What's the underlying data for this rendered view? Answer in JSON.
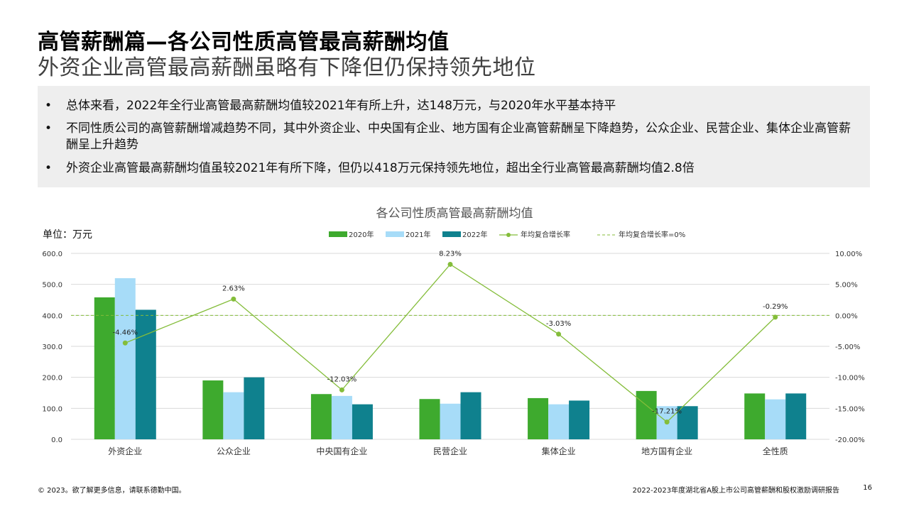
{
  "header": {
    "title": "高管薪酬篇—各公司性质高管最高薪酬均值",
    "subtitle": "外资企业高管最高薪酬虽略有下降但仍保持领先地位"
  },
  "summary": {
    "bullets": [
      "总体来看，2022年全行业高管最高薪酬均值较2021年有所上升，达148万元，与2020年水平基本持平",
      "不同性质公司的高管薪酬增减趋势不同，其中外资企业、中央国有企业、地方国有企业高管薪酬呈下降趋势，公众企业、民营企业、集体企业高管薪酬呈上升趋势",
      "外资企业高管最高薪酬均值虽较2021年有所下降，但仍以418万元保持领先地位，超出全行业高管最高薪酬均值2.8倍"
    ],
    "bullet_symbol": "•"
  },
  "chart_data": {
    "type": "bar",
    "title": "各公司性质高管最高薪酬均值",
    "unit_label": "单位：万元",
    "categories": [
      "外资企业",
      "公众企业",
      "中央国有企业",
      "民营企业",
      "集体企业",
      "地方国有企业",
      "全性质"
    ],
    "series": [
      {
        "name": "2020年",
        "type": "bar",
        "color": "#3eaa2e",
        "values": [
          458,
          190,
          146,
          130,
          133,
          156,
          148
        ]
      },
      {
        "name": "2021年",
        "type": "bar",
        "color": "#a7dcf8",
        "values": [
          520,
          152,
          140,
          115,
          113,
          107,
          129
        ]
      },
      {
        "name": "2022年",
        "type": "bar",
        "color": "#0f818e",
        "values": [
          418,
          200,
          113,
          152,
          125,
          107,
          148
        ]
      },
      {
        "name": "年均复合增长率",
        "type": "line",
        "axis": "right",
        "color": "#84bd3a",
        "values": [
          -4.46,
          2.63,
          -12.03,
          8.23,
          -3.03,
          -17.21,
          -0.29
        ],
        "labels": [
          "-4.46%",
          "2.63%",
          "-12.03%",
          "8.23%",
          "-3.03%",
          "-17.21%",
          "-0.29%"
        ]
      },
      {
        "name": "年均复合增长率=0%",
        "type": "reference",
        "axis": "right",
        "color": "#84bd3a",
        "value": 0
      }
    ],
    "y_left": {
      "min": 0,
      "max": 600,
      "ticks": [
        "0.0",
        "100.0",
        "200.0",
        "300.0",
        "400.0",
        "500.0",
        "600.0"
      ]
    },
    "y_right": {
      "min": -20,
      "max": 10,
      "ticks": [
        "-20.00%",
        "-15.00%",
        "-10.00%",
        "-5.00%",
        "0.00%",
        "5.00%",
        "10.00%"
      ]
    },
    "grid": true,
    "legend_position": "top"
  },
  "footer": {
    "copyright": "© 2023。欲了解更多信息，请联系德勤中国。",
    "report_title": "2022-2023年度湖北省A股上市公司高管薪酬和股权激励调研报告",
    "page_number": "16"
  }
}
